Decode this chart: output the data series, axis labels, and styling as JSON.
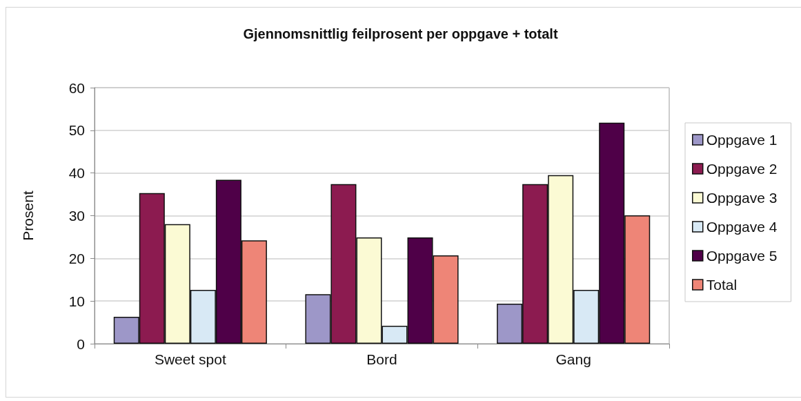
{
  "chart_data": {
    "type": "bar",
    "title": "Gjennomsnittlig feilprosent per oppgave + totalt",
    "ylabel": "Prosent",
    "categories": [
      "Sweet spot",
      "Bord",
      "Gang"
    ],
    "series": [
      {
        "name": "Oppgave 1",
        "color": "#9d97c8",
        "values": [
          6.3,
          11.6,
          9.4
        ]
      },
      {
        "name": "Oppgave 2",
        "color": "#8c1b50",
        "values": [
          35.3,
          37.4,
          37.4
        ]
      },
      {
        "name": "Oppgave 3",
        "color": "#fbfad4",
        "values": [
          28,
          24.9,
          39.5
        ]
      },
      {
        "name": "Oppgave 4",
        "color": "#d8e9f5",
        "values": [
          12.6,
          4.2,
          12.6
        ]
      },
      {
        "name": "Oppgave 5",
        "color": "#4f0048",
        "values": [
          38.4,
          24.9,
          51.8
        ]
      },
      {
        "name": "Total",
        "color": "#ee8577",
        "values": [
          24.2,
          20.7,
          30.1
        ]
      }
    ],
    "ylim": [
      0,
      60
    ],
    "yticks": [
      0,
      10,
      20,
      30,
      40,
      50,
      60
    ],
    "grid": "y",
    "legend": "right"
  }
}
